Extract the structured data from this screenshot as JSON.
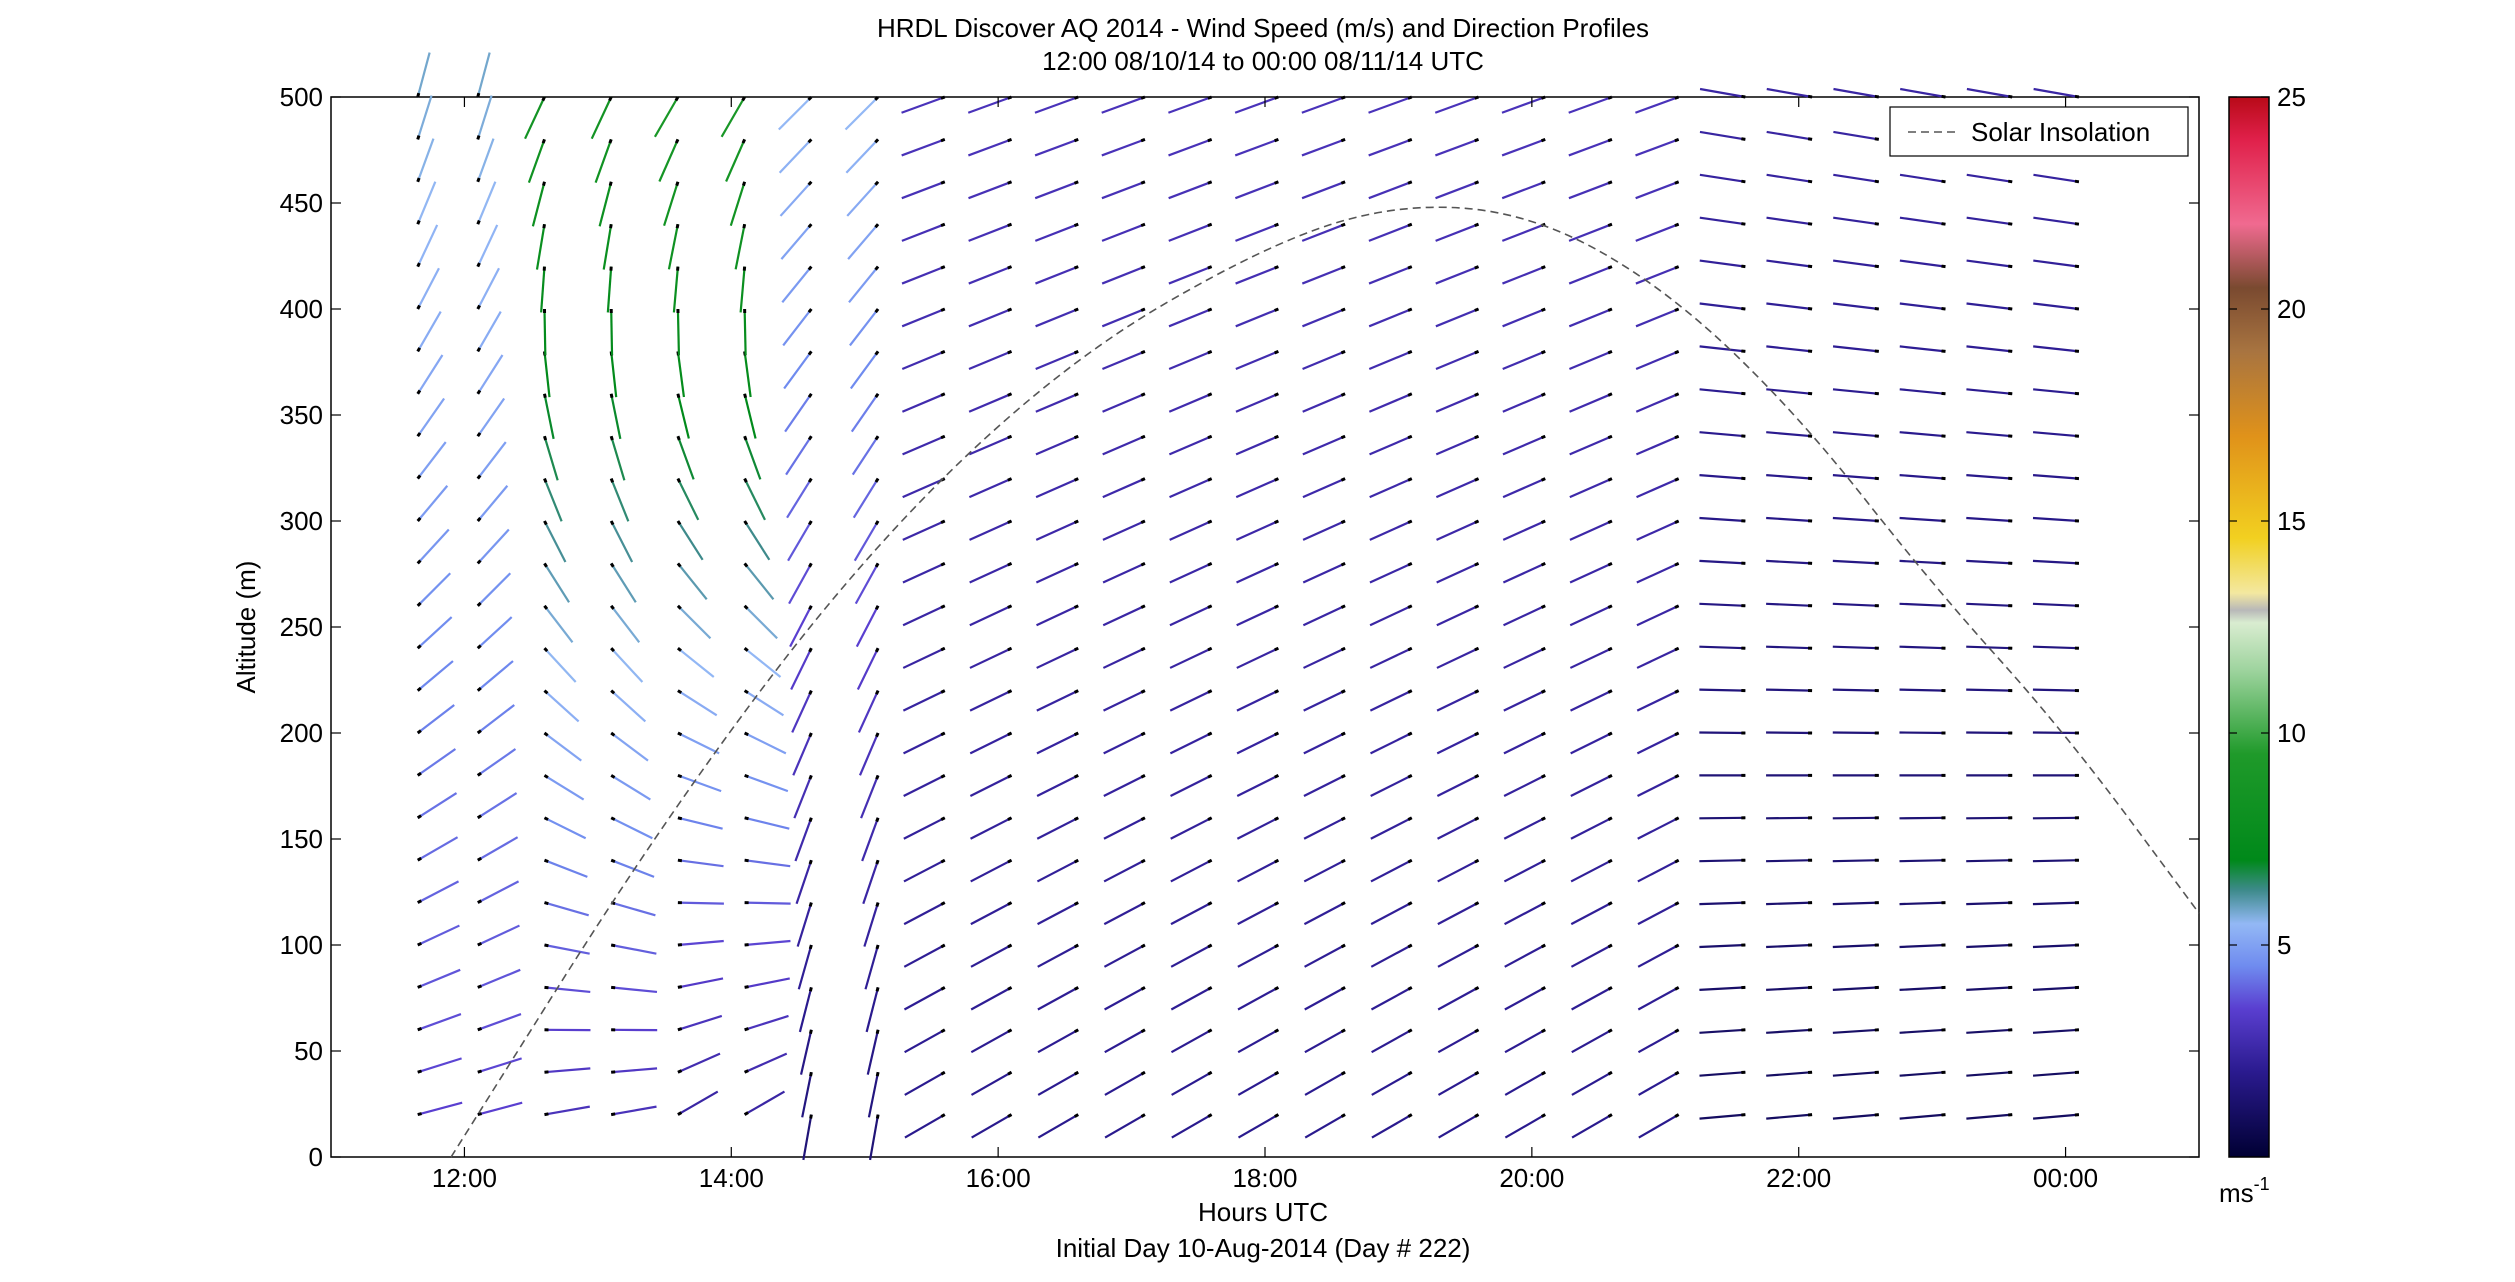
{
  "chart_data": {
    "type": "quiver",
    "title": "HRDL Discover AQ 2014 - Wind Speed (m/s) and Direction Profiles",
    "subtitle": "12:00 08/10/14 to 00:00 08/11/14  UTC",
    "xlabel": "Hours UTC",
    "xlabel2": "Initial Day 10-Aug-2014 (Day # 222)",
    "ylabel": "Altitude (m)",
    "xlim_hours": [
      11.0,
      25.0
    ],
    "ylim": [
      0,
      500
    ],
    "xticks": [
      {
        "value": 12,
        "label": "12:00"
      },
      {
        "value": 14,
        "label": "14:00"
      },
      {
        "value": 16,
        "label": "16:00"
      },
      {
        "value": 18,
        "label": "18:00"
      },
      {
        "value": 20,
        "label": "20:00"
      },
      {
        "value": 22,
        "label": "22:00"
      },
      {
        "value": 24,
        "label": "00:00"
      }
    ],
    "yticks": [
      0,
      50,
      100,
      150,
      200,
      250,
      300,
      350,
      400,
      450,
      500
    ],
    "legend": {
      "label": "Solar Insolation",
      "placement": "top-right"
    },
    "colorbar": {
      "min": 0,
      "max": 25,
      "ticks": [
        5,
        10,
        15,
        20,
        25
      ],
      "unit_label": "ms",
      "unit_exp": "-1"
    },
    "colormap_stops": [
      {
        "v": 0,
        "c": "#000033"
      },
      {
        "v": 2,
        "c": "#2a1a8e"
      },
      {
        "v": 3.5,
        "c": "#5a3fd0"
      },
      {
        "v": 4.5,
        "c": "#6f8bef"
      },
      {
        "v": 5.5,
        "c": "#93b8f5"
      },
      {
        "v": 6.3,
        "c": "#3d8a8a"
      },
      {
        "v": 7,
        "c": "#00891a"
      },
      {
        "v": 9.5,
        "c": "#1f9a2a"
      },
      {
        "v": 11.5,
        "c": "#9fd49f"
      },
      {
        "v": 12.6,
        "c": "#d9ecd0"
      },
      {
        "v": 12.9,
        "c": "#b8b8b8"
      },
      {
        "v": 13.3,
        "c": "#f3e8a0"
      },
      {
        "v": 14.6,
        "c": "#f2d020"
      },
      {
        "v": 17,
        "c": "#e0921a"
      },
      {
        "v": 19,
        "c": "#a87440"
      },
      {
        "v": 20.5,
        "c": "#7a4a30"
      },
      {
        "v": 22,
        "c": "#f06a90"
      },
      {
        "v": 24,
        "c": "#e0204a"
      },
      {
        "v": 25,
        "c": "#b80a18"
      }
    ],
    "solar_insolation": {
      "style": "dashed",
      "points": [
        [
          11.9,
          0
        ],
        [
          13.5,
          160
        ],
        [
          15,
          285
        ],
        [
          16.5,
          375
        ],
        [
          18,
          430
        ],
        [
          19,
          450
        ],
        [
          20,
          445
        ],
        [
          21,
          410
        ],
        [
          22,
          350
        ],
        [
          23,
          270
        ],
        [
          24,
          200
        ],
        [
          25,
          115
        ]
      ]
    },
    "profile_times": [
      11.65,
      12.1,
      12.6,
      13.1,
      13.6,
      14.1,
      14.6,
      15.1,
      15.6,
      16.1,
      16.6,
      17.1,
      17.6,
      18.1,
      18.6,
      19.1,
      19.6,
      20.1,
      20.6,
      21.1,
      21.6,
      22.1,
      22.6,
      23.1,
      23.6,
      24.1
    ],
    "profile_altitudes": [
      20,
      40,
      60,
      80,
      100,
      120,
      140,
      160,
      180,
      200,
      220,
      240,
      260,
      280,
      300,
      320,
      340,
      360,
      380,
      400,
      420,
      440,
      460,
      480,
      500
    ],
    "wind_regimes": [
      {
        "t_from": 11.6,
        "t_to": 12.3,
        "speed_low": 3.5,
        "speed_high": 5.8,
        "dir_low": 75,
        "dir_high": 15
      },
      {
        "t_from": 12.3,
        "t_to": 13.3,
        "speed_low": 3.0,
        "speed_high": 8.5,
        "dir_low": 80,
        "dir_high": 205
      },
      {
        "t_from": 13.3,
        "t_to": 14.3,
        "speed_low": 2.5,
        "speed_high": 9.0,
        "dir_low": 60,
        "dir_high": 210
      },
      {
        "t_from": 14.3,
        "t_to": 15.3,
        "speed_low": 1.5,
        "speed_high": 5.5,
        "dir_low": 190,
        "dir_high": 225
      },
      {
        "t_from": 15.3,
        "t_to": 21.4,
        "speed_low": 2.0,
        "speed_high": 3.0,
        "dir_low": 240,
        "dir_high": 250
      },
      {
        "t_from": 21.4,
        "t_to": 24.2,
        "speed_low": 1.0,
        "speed_high": 2.5,
        "dir_low": 265,
        "dir_high": 280
      }
    ]
  }
}
